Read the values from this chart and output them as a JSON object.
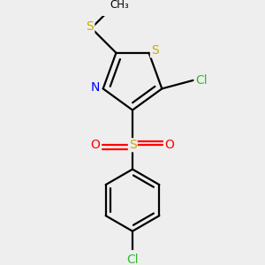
{
  "background_color": "#eeeeee",
  "atom_colors": {
    "S": "#ccaa00",
    "N": "#0000ff",
    "Cl": "#33bb33",
    "O": "#ff0000",
    "C": "#000000",
    "S_sulfonyl": "#ccaa00"
  },
  "bond_color": "#000000",
  "bond_width": 1.6
}
